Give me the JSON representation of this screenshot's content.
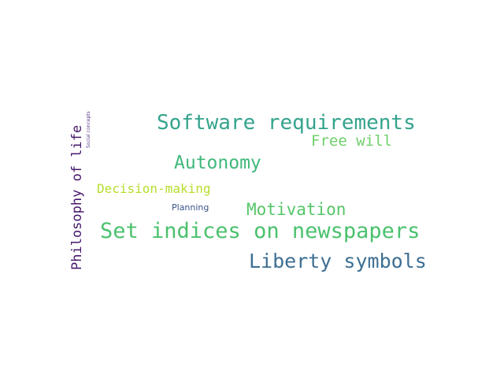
{
  "word_cloud": {
    "words": [
      {
        "id": "software-requirements",
        "text": "Software requirements",
        "color": "#34a38c"
      },
      {
        "id": "free-will",
        "text": "Free will",
        "color": "#6fcf6b"
      },
      {
        "id": "autonomy",
        "text": "Autonomy",
        "color": "#3fb87a"
      },
      {
        "id": "decision-making",
        "text": "Decision-making",
        "color": "#b5de2b"
      },
      {
        "id": "planning",
        "text": "Planning",
        "color": "#3b528b"
      },
      {
        "id": "motivation",
        "text": "Motivation",
        "color": "#55c667"
      },
      {
        "id": "set-indices-on-newspapers",
        "text": "Set indices on newspapers",
        "color": "#4ac16d"
      },
      {
        "id": "liberty-symbols",
        "text": "Liberty symbols",
        "color": "#3e6f93"
      },
      {
        "id": "philosophy-of-life",
        "text": "Philosophy of life",
        "color": "#46176b"
      },
      {
        "id": "social-concepts",
        "text": "Social concepts",
        "color": "#5b3f8c"
      }
    ]
  }
}
